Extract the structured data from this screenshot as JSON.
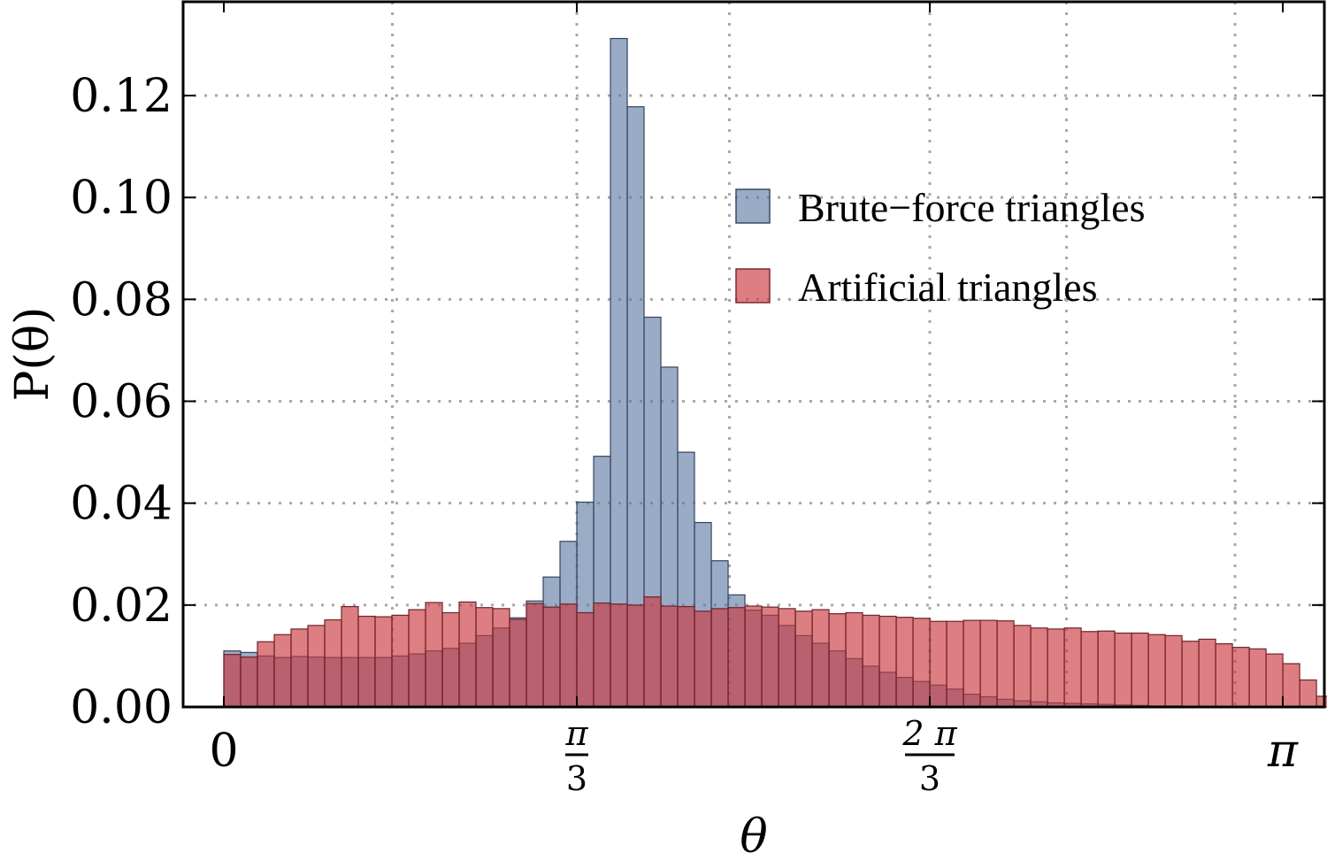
{
  "chart_data": {
    "type": "bar",
    "xlabel": "θ",
    "ylabel": "P(θ)",
    "xlim": [
      0,
      3.14159265
    ],
    "ylim": [
      0,
      0.138
    ],
    "grid": true,
    "legend_position": "top-right",
    "x_ticks": [
      {
        "value": 0,
        "label": "0"
      },
      {
        "value": 1.0471976,
        "numerator": "π",
        "denominator": "3"
      },
      {
        "value": 2.0943951,
        "numerator": "2 π",
        "denominator": "3"
      },
      {
        "value": 3.14159265,
        "label": "π"
      }
    ],
    "y_ticks": [
      {
        "value": 0.0,
        "label": "0.00"
      },
      {
        "value": 0.02,
        "label": "0.02"
      },
      {
        "value": 0.04,
        "label": "0.04"
      },
      {
        "value": 0.06,
        "label": "0.06"
      },
      {
        "value": 0.08,
        "label": "0.08"
      },
      {
        "value": 0.1,
        "label": "0.10"
      },
      {
        "value": 0.12,
        "label": "0.12"
      }
    ],
    "grid_x": [
      0.5,
      1.0471976,
      1.5,
      2.0943951,
      2.5,
      3.0
    ],
    "bin_width": 0.04987,
    "bin_start": 0,
    "series": [
      {
        "name": "Brute−force triangles",
        "color": "#5c77a3",
        "values": [
          0.011,
          0.0107,
          0.01,
          0.0097,
          0.0099,
          0.0098,
          0.0097,
          0.0097,
          0.0097,
          0.0097,
          0.01,
          0.0104,
          0.011,
          0.0115,
          0.0125,
          0.014,
          0.0155,
          0.0175,
          0.0208,
          0.0255,
          0.0325,
          0.0402,
          0.0492,
          0.1312,
          0.1178,
          0.0765,
          0.0667,
          0.05,
          0.0362,
          0.0287,
          0.022,
          0.019,
          0.018,
          0.016,
          0.014,
          0.0125,
          0.011,
          0.0095,
          0.008,
          0.0068,
          0.0058,
          0.005,
          0.0043,
          0.0035,
          0.0025,
          0.002,
          0.0015,
          0.0012,
          0.001,
          0.0008,
          0.0007,
          0.0006,
          0.0005,
          0.0004,
          0.0003,
          0.0002,
          0.0002,
          0.0001,
          0.0001,
          0.0001,
          0.0001,
          0.0,
          0.0
        ]
      },
      {
        "name": "Artificial triangles",
        "color": "#c9393f",
        "values": [
          0.0103,
          0.0098,
          0.0128,
          0.0142,
          0.0153,
          0.016,
          0.0171,
          0.0197,
          0.0178,
          0.0177,
          0.018,
          0.0191,
          0.0205,
          0.0185,
          0.0206,
          0.0195,
          0.0193,
          0.0172,
          0.0203,
          0.0196,
          0.0202,
          0.0185,
          0.0204,
          0.0202,
          0.02,
          0.0216,
          0.0198,
          0.0197,
          0.0188,
          0.0193,
          0.0195,
          0.0198,
          0.0196,
          0.0193,
          0.0188,
          0.0191,
          0.0183,
          0.0185,
          0.018,
          0.0178,
          0.0176,
          0.0174,
          0.0168,
          0.0168,
          0.017,
          0.017,
          0.0169,
          0.016,
          0.0155,
          0.0153,
          0.0155,
          0.0148,
          0.0149,
          0.0145,
          0.0145,
          0.0142,
          0.014,
          0.0129,
          0.0133,
          0.0124,
          0.0117,
          0.0114,
          0.0104,
          0.0085,
          0.0053,
          0.0021,
          0.0002
        ]
      }
    ]
  }
}
